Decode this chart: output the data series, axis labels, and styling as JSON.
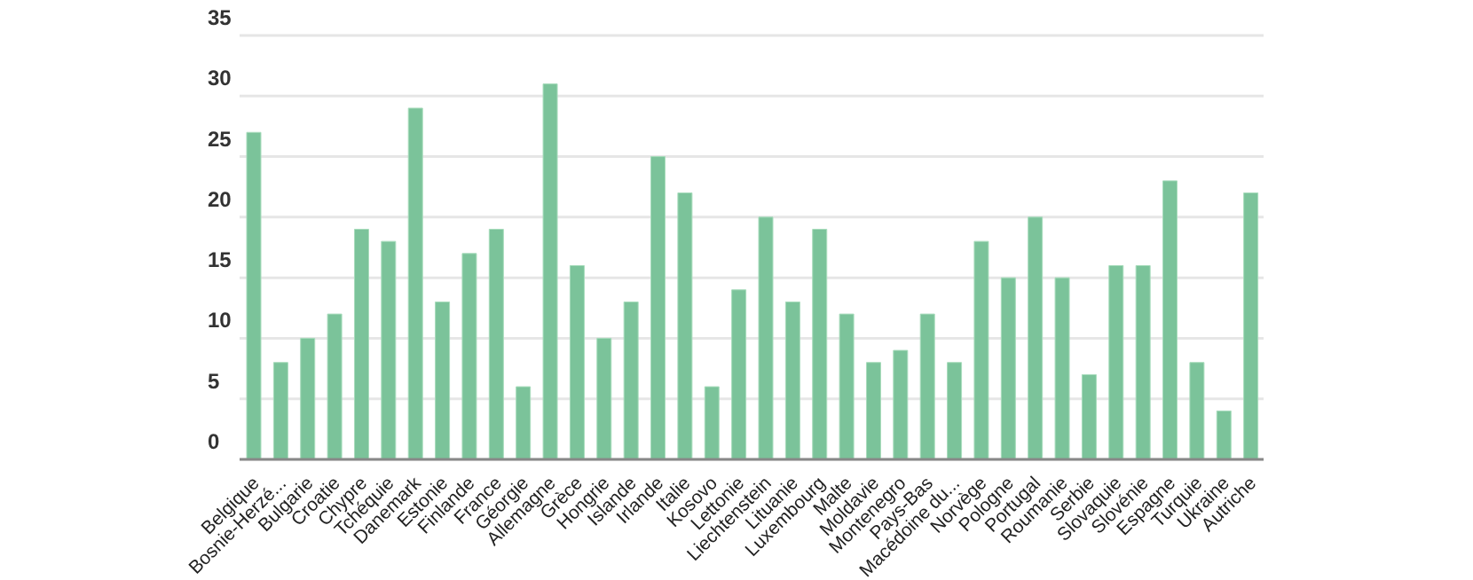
{
  "chart_data": {
    "type": "bar",
    "categories": [
      "Belgique",
      "Bosnie-Herzé...",
      "Bulgarie",
      "Croatie",
      "Chypre",
      "Tchéquie",
      "Danemark",
      "Estonie",
      "Finlande",
      "France",
      "Géorgie",
      "Allemagne",
      "Grèce",
      "Hongrie",
      "Islande",
      "Irlande",
      "Italie",
      "Kosovo",
      "Lettonie",
      "Liechtenstein",
      "Lituanie",
      "Luxembourg",
      "Malte",
      "Moldavie",
      "Montenegro",
      "Pays-Bas",
      "Macédoine du...",
      "Norvège",
      "Pologne",
      "Portugal",
      "Roumanie",
      "Serbie",
      "Slovaquie",
      "Slovénie",
      "Espagne",
      "Turquie",
      "Ukraine",
      "Autriche"
    ],
    "values": [
      27,
      8,
      10,
      12,
      19,
      18,
      29,
      13,
      17,
      19,
      6,
      31,
      16,
      10,
      13,
      25,
      22,
      6,
      14,
      20,
      13,
      19,
      12,
      8,
      9,
      12,
      8,
      18,
      15,
      20,
      15,
      7,
      16,
      16,
      23,
      8,
      4,
      22
    ],
    "color": "#7bc39a",
    "ylim": [
      0,
      35
    ],
    "yticks": [
      0,
      5,
      10,
      15,
      20,
      25,
      30,
      35
    ],
    "grid": "y"
  }
}
